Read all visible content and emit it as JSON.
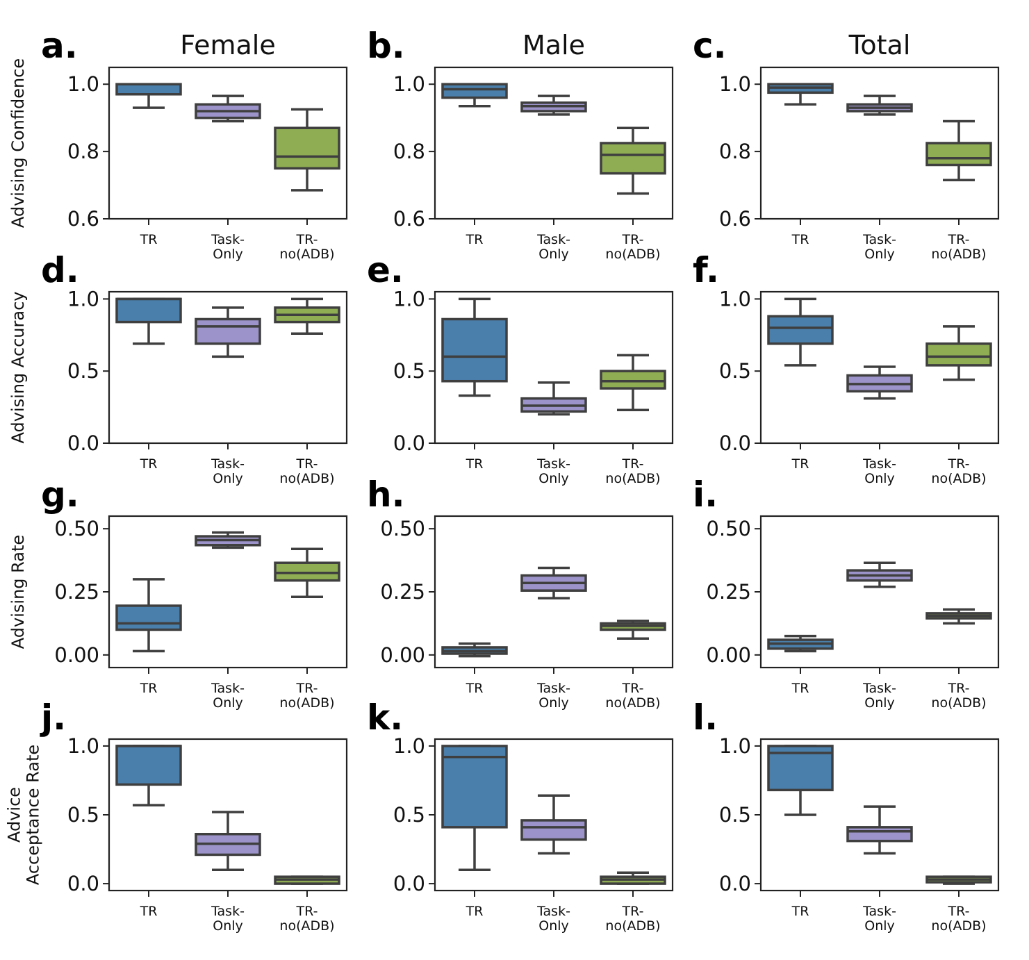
{
  "column_titles": [
    "Female",
    "Male",
    "Total"
  ],
  "categories": [
    [
      "TR"
    ],
    [
      "Task-",
      "Only"
    ],
    [
      "TR-",
      "no(ADB)"
    ]
  ],
  "colors": {
    "TR": "#4a7fab",
    "Task-Only": "#9b93c9",
    "TR-no(ADB)": "#8fae53",
    "line": "#3f3f3f"
  },
  "chart_data": [
    {
      "panel": "a.",
      "type": "box",
      "column": "Female",
      "ylabel": [
        "Advising Confidence"
      ],
      "ylim": [
        0.6,
        1.05
      ],
      "yticks": [
        "0.6",
        "0.8",
        "1.0"
      ],
      "categories": [
        "TR",
        "Task-Only",
        "TR-no(ADB)"
      ],
      "boxes": [
        {
          "whislo": 0.93,
          "q1": 0.97,
          "med": 1.0,
          "q3": 1.0,
          "whishi": 1.0
        },
        {
          "whislo": 0.89,
          "q1": 0.9,
          "med": 0.92,
          "q3": 0.94,
          "whishi": 0.965
        },
        {
          "whislo": 0.685,
          "q1": 0.75,
          "med": 0.785,
          "q3": 0.87,
          "whishi": 0.925
        }
      ]
    },
    {
      "panel": "b.",
      "type": "box",
      "column": "Male",
      "ylabel": [],
      "ylim": [
        0.6,
        1.05
      ],
      "yticks": [
        "0.6",
        "0.8",
        "1.0"
      ],
      "categories": [
        "TR",
        "Task-Only",
        "TR-no(ADB)"
      ],
      "boxes": [
        {
          "whislo": 0.935,
          "q1": 0.96,
          "med": 0.985,
          "q3": 1.0,
          "whishi": 1.0
        },
        {
          "whislo": 0.91,
          "q1": 0.92,
          "med": 0.935,
          "q3": 0.945,
          "whishi": 0.965
        },
        {
          "whislo": 0.675,
          "q1": 0.735,
          "med": 0.79,
          "q3": 0.825,
          "whishi": 0.87
        }
      ]
    },
    {
      "panel": "c.",
      "type": "box",
      "column": "Total",
      "ylabel": [],
      "ylim": [
        0.6,
        1.05
      ],
      "yticks": [
        "0.6",
        "0.8",
        "1.0"
      ],
      "categories": [
        "TR",
        "Task-Only",
        "TR-no(ADB)"
      ],
      "boxes": [
        {
          "whislo": 0.94,
          "q1": 0.975,
          "med": 0.99,
          "q3": 1.0,
          "whishi": 1.0
        },
        {
          "whislo": 0.91,
          "q1": 0.92,
          "med": 0.93,
          "q3": 0.94,
          "whishi": 0.965
        },
        {
          "whislo": 0.715,
          "q1": 0.76,
          "med": 0.78,
          "q3": 0.825,
          "whishi": 0.89
        }
      ]
    },
    {
      "panel": "d.",
      "type": "box",
      "column": "Female",
      "ylabel": [
        "Advising Accuracy"
      ],
      "ylim": [
        0.0,
        1.05
      ],
      "yticks": [
        "0.0",
        "0.5",
        "1.0"
      ],
      "categories": [
        "TR",
        "Task-Only",
        "TR-no(ADB)"
      ],
      "boxes": [
        {
          "whislo": 0.69,
          "q1": 0.84,
          "med": 1.0,
          "q3": 1.0,
          "whishi": 1.0
        },
        {
          "whislo": 0.6,
          "q1": 0.69,
          "med": 0.81,
          "q3": 0.86,
          "whishi": 0.94
        },
        {
          "whislo": 0.76,
          "q1": 0.84,
          "med": 0.89,
          "q3": 0.94,
          "whishi": 1.0
        }
      ]
    },
    {
      "panel": "e.",
      "type": "box",
      "column": "Male",
      "ylabel": [],
      "ylim": [
        0.0,
        1.05
      ],
      "yticks": [
        "0.0",
        "0.5",
        "1.0"
      ],
      "categories": [
        "TR",
        "Task-Only",
        "TR-no(ADB)"
      ],
      "boxes": [
        {
          "whislo": 0.33,
          "q1": 0.43,
          "med": 0.6,
          "q3": 0.86,
          "whishi": 1.0
        },
        {
          "whislo": 0.2,
          "q1": 0.22,
          "med": 0.26,
          "q3": 0.31,
          "whishi": 0.42
        },
        {
          "whislo": 0.23,
          "q1": 0.38,
          "med": 0.43,
          "q3": 0.5,
          "whishi": 0.61
        }
      ]
    },
    {
      "panel": "f.",
      "type": "box",
      "column": "Total",
      "ylabel": [],
      "ylim": [
        0.0,
        1.05
      ],
      "yticks": [
        "0.0",
        "0.5",
        "1.0"
      ],
      "categories": [
        "TR",
        "Task-Only",
        "TR-no(ADB)"
      ],
      "boxes": [
        {
          "whislo": 0.54,
          "q1": 0.69,
          "med": 0.8,
          "q3": 0.88,
          "whishi": 1.0
        },
        {
          "whislo": 0.31,
          "q1": 0.36,
          "med": 0.41,
          "q3": 0.47,
          "whishi": 0.53
        },
        {
          "whislo": 0.44,
          "q1": 0.54,
          "med": 0.6,
          "q3": 0.69,
          "whishi": 0.81
        }
      ]
    },
    {
      "panel": "g.",
      "type": "box",
      "column": "Female",
      "ylabel": [
        "Advising Rate"
      ],
      "ylim": [
        -0.05,
        0.55
      ],
      "yticks": [
        "0.00",
        "0.25",
        "0.50"
      ],
      "categories": [
        "TR",
        "Task-Only",
        "TR-no(ADB)"
      ],
      "boxes": [
        {
          "whislo": 0.015,
          "q1": 0.1,
          "med": 0.125,
          "q3": 0.195,
          "whishi": 0.3
        },
        {
          "whislo": 0.425,
          "q1": 0.435,
          "med": 0.455,
          "q3": 0.47,
          "whishi": 0.485
        },
        {
          "whislo": 0.23,
          "q1": 0.295,
          "med": 0.325,
          "q3": 0.365,
          "whishi": 0.42
        }
      ]
    },
    {
      "panel": "h.",
      "type": "box",
      "column": "Male",
      "ylabel": [],
      "ylim": [
        -0.05,
        0.55
      ],
      "yticks": [
        "0.00",
        "0.25",
        "0.50"
      ],
      "categories": [
        "TR",
        "Task-Only",
        "TR-no(ADB)"
      ],
      "boxes": [
        {
          "whislo": -0.005,
          "q1": 0.005,
          "med": 0.015,
          "q3": 0.03,
          "whishi": 0.045
        },
        {
          "whislo": 0.225,
          "q1": 0.255,
          "med": 0.285,
          "q3": 0.315,
          "whishi": 0.345
        },
        {
          "whislo": 0.065,
          "q1": 0.1,
          "med": 0.115,
          "q3": 0.125,
          "whishi": 0.135
        }
      ]
    },
    {
      "panel": "i.",
      "type": "box",
      "column": "Total",
      "ylabel": [],
      "ylim": [
        -0.05,
        0.55
      ],
      "yticks": [
        "0.00",
        "0.25",
        "0.50"
      ],
      "categories": [
        "TR",
        "Task-Only",
        "TR-no(ADB)"
      ],
      "boxes": [
        {
          "whislo": 0.015,
          "q1": 0.025,
          "med": 0.045,
          "q3": 0.06,
          "whishi": 0.075
        },
        {
          "whislo": 0.27,
          "q1": 0.295,
          "med": 0.315,
          "q3": 0.335,
          "whishi": 0.365
        },
        {
          "whislo": 0.125,
          "q1": 0.145,
          "med": 0.155,
          "q3": 0.165,
          "whishi": 0.18
        }
      ]
    },
    {
      "panel": "j.",
      "type": "box",
      "column": "Female",
      "ylabel": [
        "Advice",
        "Acceptance Rate"
      ],
      "ylim": [
        -0.05,
        1.05
      ],
      "yticks": [
        "0.0",
        "0.5",
        "1.0"
      ],
      "categories": [
        "TR",
        "Task-Only",
        "TR-no(ADB)"
      ],
      "boxes": [
        {
          "whislo": 0.57,
          "q1": 0.72,
          "med": 1.0,
          "q3": 1.0,
          "whishi": 1.0
        },
        {
          "whislo": 0.1,
          "q1": 0.21,
          "med": 0.29,
          "q3": 0.36,
          "whishi": 0.52
        },
        {
          "whislo": 0.0,
          "q1": 0.0,
          "med": 0.03,
          "q3": 0.05,
          "whishi": 0.05
        }
      ]
    },
    {
      "panel": "k.",
      "type": "box",
      "column": "Male",
      "ylabel": [],
      "ylim": [
        -0.05,
        1.05
      ],
      "yticks": [
        "0.0",
        "0.5",
        "1.0"
      ],
      "categories": [
        "TR",
        "Task-Only",
        "TR-no(ADB)"
      ],
      "boxes": [
        {
          "whislo": 0.1,
          "q1": 0.41,
          "med": 0.92,
          "q3": 1.0,
          "whishi": 1.0
        },
        {
          "whislo": 0.22,
          "q1": 0.32,
          "med": 0.41,
          "q3": 0.46,
          "whishi": 0.64
        },
        {
          "whislo": 0.0,
          "q1": 0.0,
          "med": 0.03,
          "q3": 0.05,
          "whishi": 0.08
        }
      ]
    },
    {
      "panel": "l.",
      "type": "box",
      "column": "Total",
      "ylabel": [],
      "ylim": [
        -0.05,
        1.05
      ],
      "yticks": [
        "0.0",
        "0.5",
        "1.0"
      ],
      "categories": [
        "TR",
        "Task-Only",
        "TR-no(ADB)"
      ],
      "boxes": [
        {
          "whislo": 0.5,
          "q1": 0.68,
          "med": 0.95,
          "q3": 1.0,
          "whishi": 1.0
        },
        {
          "whislo": 0.22,
          "q1": 0.31,
          "med": 0.38,
          "q3": 0.41,
          "whishi": 0.56
        },
        {
          "whislo": 0.0,
          "q1": 0.01,
          "med": 0.03,
          "q3": 0.05,
          "whishi": 0.05
        }
      ]
    }
  ]
}
